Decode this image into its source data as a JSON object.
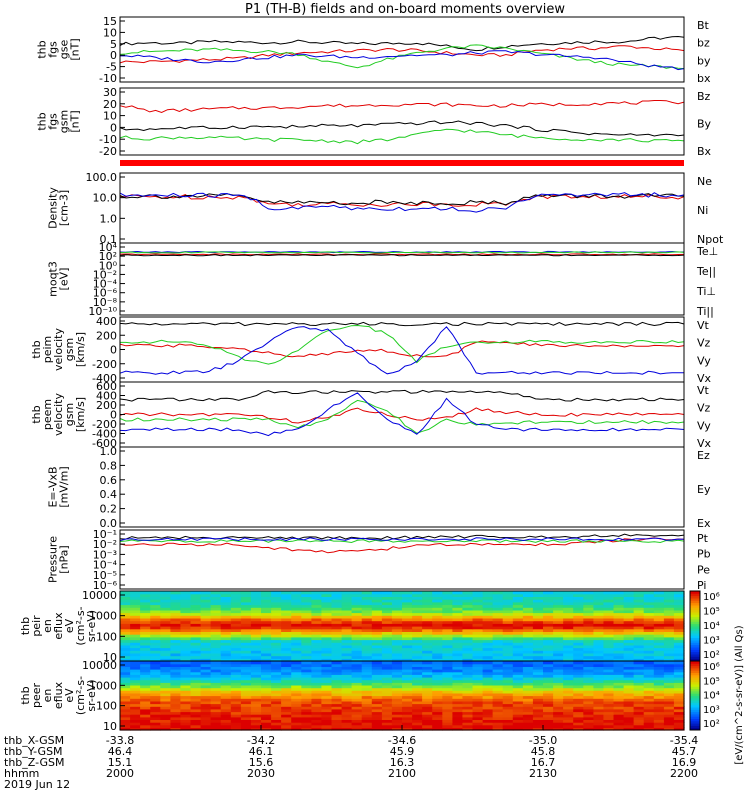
{
  "title": "P1 (TH-B) fields and on-board moments overview",
  "colors": {
    "black": "#000000",
    "red": "#e00000",
    "green": "#22cc22",
    "blue": "#0000dd",
    "bar_red": "#ff0000"
  },
  "chart_data": [
    {
      "type": "line",
      "ylabel": [
        "thb",
        "fgs",
        "gse",
        "[nT]"
      ],
      "yticks": [
        "15",
        "10",
        "5",
        "0",
        "-5",
        "-10"
      ],
      "ylim": [
        -12,
        17
      ],
      "series": [
        {
          "name": "Bt",
          "color": "#000000",
          "values": [
            5,
            5.5,
            5.2,
            6,
            5.8,
            5.5,
            6,
            5.5,
            5,
            5.2,
            5.5,
            4,
            2.5,
            4,
            5,
            5.5,
            6,
            6,
            7.5,
            8
          ]
        },
        {
          "name": "bz",
          "color": "#e00000",
          "values": [
            -3,
            -3,
            -2.5,
            -2,
            -1.5,
            0,
            1,
            1.5,
            2,
            2.5,
            2,
            1,
            0,
            0,
            2,
            3,
            3,
            4,
            3,
            2
          ]
        },
        {
          "name": "by",
          "color": "#22cc22",
          "values": [
            1,
            1.5,
            2,
            2.5,
            2,
            1.5,
            0.5,
            -3,
            -5.5,
            -2,
            1,
            3,
            4,
            3,
            1,
            -1,
            -3,
            -4.5,
            -5,
            -6
          ]
        },
        {
          "name": "bx",
          "color": "#0000dd",
          "values": [
            0,
            -1,
            -2,
            -3,
            -2,
            -1,
            0,
            -0.5,
            -1,
            -0.5,
            0,
            0,
            1,
            1.5,
            0.5,
            -0.5,
            -1,
            -3,
            -5,
            -6
          ]
        }
      ]
    },
    {
      "type": "line",
      "ylabel": [
        "thb",
        "fgs",
        "gsm",
        "[nT]"
      ],
      "yticks": [
        "30",
        "20",
        "10",
        "0",
        "-10",
        "-20"
      ],
      "ylim": [
        -25,
        32
      ],
      "series": [
        {
          "name": "Bz",
          "color": "#e00000",
          "values": [
            18,
            12,
            13,
            14,
            15,
            15,
            16,
            17,
            17,
            18,
            18,
            18,
            17,
            17,
            18,
            18,
            19,
            19,
            20,
            20
          ]
        },
        {
          "name": "By",
          "color": "#22cc22",
          "values": [
            -10,
            -11,
            -10,
            -10,
            -11,
            -12,
            -12,
            -13,
            -14,
            -12,
            -8,
            -3,
            -5,
            -8,
            -10,
            -11,
            -12,
            -12,
            -13,
            -13
          ]
        },
        {
          "name": "Bx",
          "color": "#000000",
          "values": [
            -3,
            -3,
            -2,
            -2,
            -1,
            -1,
            -1,
            0,
            0,
            1,
            2,
            3,
            2,
            0,
            -3,
            -5,
            -7,
            -8,
            -8,
            -8
          ]
        }
      ]
    },
    {
      "type": "line",
      "log": true,
      "ylabel": [
        "Density",
        "[cm-3]"
      ],
      "yticks": [
        "100.0",
        "10.0",
        "1.0",
        "0.1"
      ],
      "ylim": [
        0.05,
        200
      ],
      "series": [
        {
          "name": "Ne",
          "color": "#e00000",
          "values": [
            12,
            12,
            12,
            12,
            12,
            5,
            5,
            5,
            5,
            5,
            5,
            5,
            5,
            5,
            12,
            12,
            12,
            12,
            12,
            12
          ]
        },
        {
          "name": "Ni",
          "color": "#000000",
          "values": [
            13,
            13,
            13,
            13,
            13,
            6,
            6,
            6,
            6,
            6,
            6,
            6,
            6,
            6,
            13,
            13,
            13,
            13,
            13,
            13
          ]
        },
        {
          "name": "Npot",
          "color": "#0000dd",
          "values": [
            14,
            14,
            14,
            14,
            14,
            3,
            3,
            4,
            3,
            3,
            3,
            3,
            2.5,
            2.5,
            14,
            14,
            15,
            15,
            15,
            15
          ]
        }
      ]
    },
    {
      "type": "line",
      "log": true,
      "ylabel": [
        "moqt3",
        "[eV]"
      ],
      "yticks": [
        "10⁴",
        "10²",
        "10⁰",
        "10⁻²",
        "10⁻⁴",
        "10⁻⁶",
        "10⁻⁸",
        "10⁻¹⁰"
      ],
      "ylim": [
        1e-11,
        100000.0
      ],
      "series": [
        {
          "name": "Te⊥",
          "color": "#e00000",
          "values": [
            300,
            300,
            300,
            300,
            300,
            300,
            300,
            300,
            300,
            300,
            300,
            300,
            300,
            300,
            300,
            300,
            300,
            300,
            300,
            300
          ]
        },
        {
          "name": "Te||",
          "color": "#000000",
          "values": [
            200,
            200,
            200,
            200,
            200,
            200,
            200,
            200,
            200,
            200,
            200,
            200,
            200,
            200,
            200,
            200,
            200,
            200,
            200,
            200
          ]
        },
        {
          "name": "Ti⊥",
          "color": "#0000dd",
          "values": [
            1000,
            1000,
            1000,
            1000,
            1000,
            1000,
            1000,
            1000,
            1000,
            1000,
            1000,
            1000,
            1000,
            1000,
            1000,
            1000,
            1000,
            1000,
            1000,
            1000
          ]
        },
        {
          "name": "Ti||",
          "color": "#22cc22",
          "values": [
            800,
            800,
            800,
            800,
            800,
            800,
            800,
            800,
            800,
            800,
            800,
            800,
            800,
            800,
            800,
            800,
            800,
            800,
            800,
            800
          ]
        }
      ]
    },
    {
      "type": "line",
      "ylabel": [
        "thb",
        "peim",
        "velocity",
        "gsm",
        "[km/s]"
      ],
      "yticks": [
        "400",
        "200",
        "0",
        "-200",
        "-400"
      ],
      "ylim": [
        -420,
        420
      ],
      "series": [
        {
          "name": "Vt",
          "color": "#000000",
          "values": [
            330,
            330,
            330,
            330,
            330,
            330,
            330,
            330,
            330,
            330,
            330,
            330,
            330,
            330,
            330,
            330,
            330,
            330,
            330,
            330
          ]
        },
        {
          "name": "Vz",
          "color": "#e00000",
          "values": [
            50,
            50,
            50,
            40,
            20,
            -50,
            -100,
            -50,
            0,
            -20,
            -80,
            -100,
            100,
            80,
            60,
            50,
            50,
            50,
            50,
            50
          ]
        },
        {
          "name": "Vy",
          "color": "#22cc22",
          "values": [
            100,
            100,
            100,
            50,
            -100,
            -200,
            0,
            250,
            330,
            200,
            -150,
            50,
            100,
            100,
            100,
            100,
            100,
            100,
            100,
            100
          ]
        },
        {
          "name": "Vx",
          "color": "#0000dd",
          "values": [
            -300,
            -300,
            -300,
            -280,
            -150,
            100,
            300,
            250,
            -50,
            -330,
            -150,
            300,
            -300,
            -300,
            -300,
            -300,
            -300,
            -300,
            -300,
            -300
          ]
        }
      ]
    },
    {
      "type": "line",
      "ylabel": [
        "thb",
        "peem",
        "velocity",
        "gsm",
        "[km/s]"
      ],
      "yticks": [
        "600",
        "400",
        "200",
        "0",
        "-200",
        "-400",
        "-600"
      ],
      "ylim": [
        -650,
        650
      ],
      "series": [
        {
          "name": "Vt",
          "color": "#000000",
          "values": [
            300,
            300,
            300,
            300,
            300,
            450,
            450,
            450,
            450,
            450,
            450,
            450,
            450,
            450,
            300,
            300,
            300,
            300,
            300,
            300
          ]
        },
        {
          "name": "Vz",
          "color": "#e00000",
          "values": [
            0,
            0,
            0,
            0,
            0,
            -50,
            -150,
            -50,
            100,
            0,
            -100,
            -50,
            100,
            50,
            0,
            0,
            0,
            0,
            0,
            0
          ]
        },
        {
          "name": "Vy",
          "color": "#22cc22",
          "values": [
            -100,
            -100,
            -100,
            -100,
            -100,
            -100,
            -250,
            -100,
            300,
            100,
            -400,
            -100,
            -200,
            -200,
            -150,
            -150,
            -150,
            -150,
            -150,
            -150
          ]
        },
        {
          "name": "Vx",
          "color": "#0000dd",
          "values": [
            -300,
            -300,
            -300,
            -300,
            -300,
            -400,
            -300,
            100,
            400,
            -100,
            -400,
            300,
            -200,
            -300,
            -300,
            -300,
            -300,
            -300,
            -300,
            -300
          ]
        }
      ]
    },
    {
      "type": "line",
      "ylabel": [
        "E=-VxB",
        "[mV/m]"
      ],
      "yticks": [
        "1.0",
        "0.8",
        "0.6",
        "0.4",
        "0.2",
        "0.0"
      ],
      "ylim": [
        0,
        1
      ],
      "series": [
        {
          "name": "Ez",
          "color": "#e00000",
          "values": []
        },
        {
          "name": "Ey",
          "color": "#22cc22",
          "values": []
        },
        {
          "name": "Ex",
          "color": "#0000dd",
          "values": []
        }
      ]
    },
    {
      "type": "line",
      "log": true,
      "ylabel": [
        "Pressure",
        "[nPa]"
      ],
      "yticks": [
        "10⁻¹",
        "10⁻²",
        "10⁻³",
        "10⁻⁴",
        "10⁻⁵",
        "10⁻⁶"
      ],
      "ylim": [
        1e-06,
        0.2
      ],
      "series": [
        {
          "name": "Pt",
          "color": "#000000",
          "values": [
            0.04,
            0.04,
            0.04,
            0.04,
            0.04,
            0.04,
            0.04,
            0.04,
            0.04,
            0.04,
            0.045,
            0.05,
            0.05,
            0.05,
            0.05,
            0.05,
            0.06,
            0.07,
            0.07,
            0.07
          ]
        },
        {
          "name": "Pb",
          "color": "#e00000",
          "values": [
            0.01,
            0.01,
            0.01,
            0.01,
            0.01,
            0.005,
            0.003,
            0.002,
            0.003,
            0.004,
            0.008,
            0.01,
            0.01,
            0.01,
            0.01,
            0.012,
            0.015,
            0.025,
            0.03,
            0.03
          ]
        },
        {
          "name": "Pe",
          "color": "#22cc22",
          "values": [
            0.02,
            0.02,
            0.02,
            0.02,
            0.02,
            0.02,
            0.02,
            0.02,
            0.02,
            0.02,
            0.02,
            0.02,
            0.02,
            0.02,
            0.02,
            0.02,
            0.02,
            0.02,
            0.02,
            0.02
          ]
        },
        {
          "name": "Pi",
          "color": "#0000dd",
          "values": [
            0.03,
            0.03,
            0.03,
            0.03,
            0.03,
            0.03,
            0.03,
            0.03,
            0.03,
            0.03,
            0.03,
            0.03,
            0.03,
            0.03,
            0.03,
            0.03,
            0.03,
            0.03,
            0.03,
            0.03
          ]
        }
      ]
    },
    {
      "type": "heatmap",
      "ylabel": [
        "thb",
        "peir",
        "en",
        "eflux",
        "eV",
        "(cm²-s-",
        "sr-eV)"
      ],
      "yticks": [
        "10000",
        "1000",
        "100",
        "10"
      ],
      "ylim": [
        5,
        30000
      ],
      "log": true,
      "colorbar_ticks": [
        "10⁶",
        "10⁵",
        "10⁴",
        "10³",
        "10²"
      ],
      "profile": [
        {
          "energy": 10,
          "level": 0.35
        },
        {
          "energy": 60,
          "level": 0.4
        },
        {
          "energy": 200,
          "level": 0.8
        },
        {
          "energy": 400,
          "level": 1.0
        },
        {
          "energy": 800,
          "level": 0.9
        },
        {
          "energy": 2000,
          "level": 0.6
        },
        {
          "energy": 6000,
          "level": 0.45
        },
        {
          "energy": 20000,
          "level": 0.4
        }
      ]
    },
    {
      "type": "heatmap",
      "ylabel": [
        "thb",
        "peer",
        "en",
        "eflux",
        "eV",
        "(cm²-s-",
        "sr-eV)"
      ],
      "yticks": [
        "10000",
        "1000",
        "100",
        "10"
      ],
      "ylim": [
        5,
        30000
      ],
      "log": true,
      "colorbar_ticks": [
        "10⁶",
        "10⁵",
        "10⁴",
        "10³",
        "10²"
      ],
      "profile": [
        {
          "energy": 7,
          "level": 1.0
        },
        {
          "energy": 50,
          "level": 0.95
        },
        {
          "energy": 200,
          "level": 0.9
        },
        {
          "energy": 600,
          "level": 0.75
        },
        {
          "energy": 1500,
          "level": 0.55
        },
        {
          "energy": 4000,
          "level": 0.35
        },
        {
          "energy": 10000,
          "level": 0.25
        },
        {
          "energy": 25000,
          "level": 0.2
        }
      ]
    }
  ],
  "colorbar_label": "[eV/(cm^2-s-sr-eV)] (All Qs)",
  "xaxis": {
    "labels": [
      "thb_X-GSM",
      "thb_Y-GSM",
      "thb_Z-GSM",
      "hhmm",
      "2019 Jun 12"
    ],
    "ticks": [
      [
        "-33.8",
        "46.4",
        "15.1",
        "2000"
      ],
      [
        "-34.2",
        "46.1",
        "15.6",
        "2030"
      ],
      [
        "-34.6",
        "45.9",
        "16.3",
        "2100"
      ],
      [
        "-35.0",
        "45.8",
        "16.7",
        "2130"
      ],
      [
        "-35.4",
        "45.7",
        "16.9",
        "2200"
      ]
    ]
  }
}
